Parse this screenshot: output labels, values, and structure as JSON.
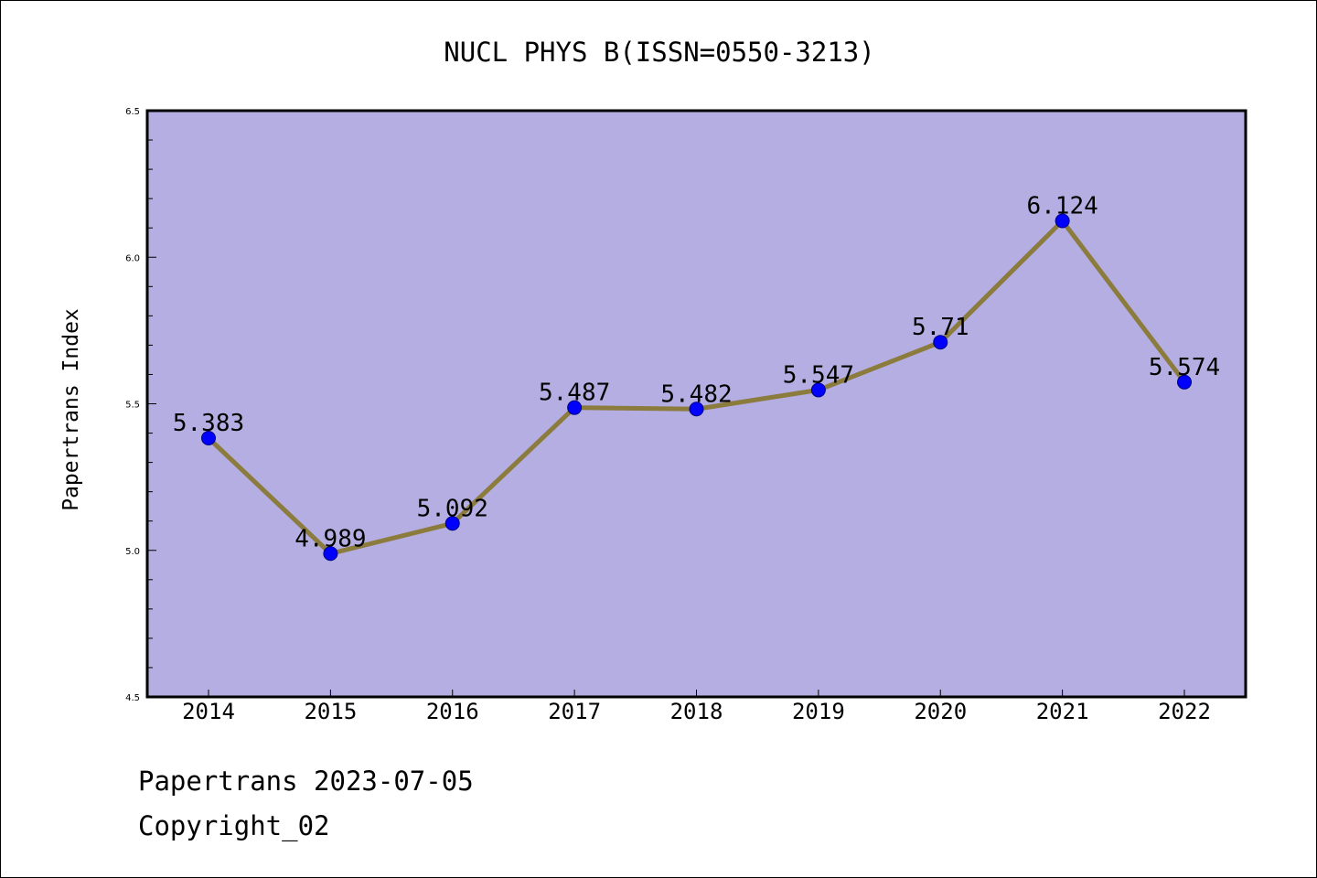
{
  "chart_data": {
    "type": "line",
    "title": "NUCL PHYS B(ISSN=0550-3213)",
    "ylabel": "Papertrans Index",
    "xlabel": "",
    "categories": [
      "2014",
      "2015",
      "2016",
      "2017",
      "2018",
      "2019",
      "2020",
      "2021",
      "2022"
    ],
    "values": [
      5.383,
      4.989,
      5.092,
      5.487,
      5.482,
      5.547,
      5.71,
      6.124,
      5.574
    ],
    "data_labels": [
      "5.383",
      "4.989",
      "5.092",
      "5.487",
      "5.482",
      "5.547",
      "5.71",
      "6.124",
      "5.574"
    ],
    "ylim": [
      4.5,
      6.5
    ],
    "y_ticks": [
      4.5,
      5.0,
      5.5,
      6.0,
      6.5
    ],
    "y_tick_labels": [
      "4.5",
      "5.0",
      "5.5",
      "6.0",
      "6.5"
    ],
    "grid": false,
    "legend": "none",
    "colors": {
      "plot_background": "#b4aee2",
      "line": "#8b7b3c",
      "marker": "#0000ff",
      "marker_edge": "#000080",
      "frame": "#000000"
    }
  },
  "footer": {
    "date_line": "Papertrans 2023-07-05",
    "copyright": "Copyright_02"
  }
}
